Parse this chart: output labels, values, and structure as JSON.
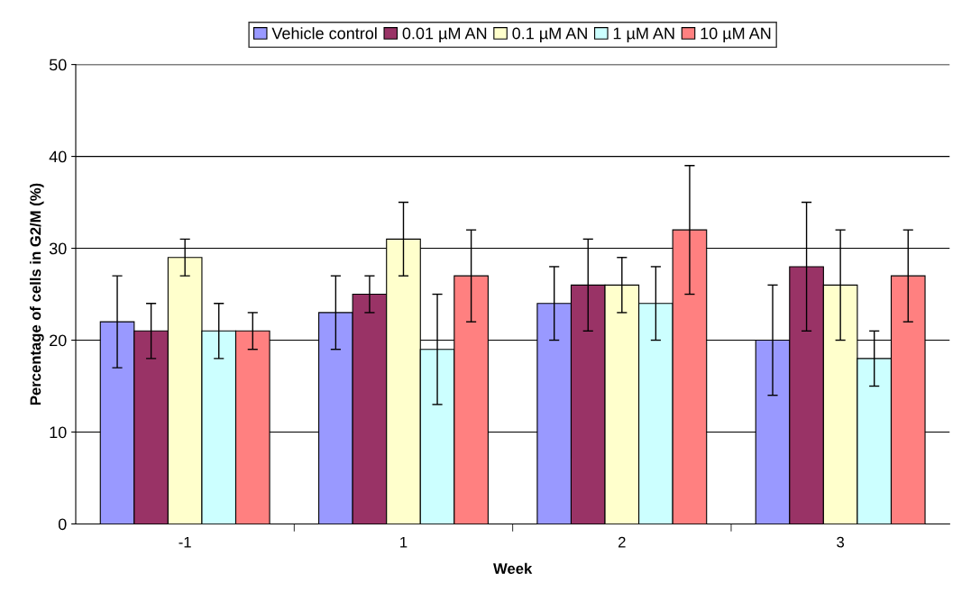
{
  "chart_data": {
    "type": "bar",
    "xlabel": "Week",
    "ylabel": "Percentage of cells in G2/M (%)",
    "categories": [
      "-1",
      "1",
      "2",
      "3"
    ],
    "series": [
      {
        "name": "Vehicle control",
        "color": "#9999ff",
        "values": [
          22,
          23,
          24,
          20
        ],
        "errors": [
          5,
          4,
          4,
          6
        ]
      },
      {
        "name": "0.01 µM AN",
        "color": "#993366",
        "values": [
          21,
          25,
          26,
          28
        ],
        "errors": [
          3,
          2,
          5,
          7
        ]
      },
      {
        "name": "0.1 µM AN",
        "color": "#ffffcc",
        "values": [
          29,
          31,
          26,
          26
        ],
        "errors": [
          2,
          4,
          3,
          6
        ]
      },
      {
        "name": "1 µM AN",
        "color": "#ccffff",
        "values": [
          21,
          19,
          24,
          18
        ],
        "errors": [
          3,
          6,
          4,
          3
        ]
      },
      {
        "name": "10 µM AN",
        "color": "#ff8080",
        "values": [
          21,
          27,
          32,
          27
        ],
        "errors": [
          2,
          5,
          7,
          5
        ]
      }
    ],
    "ylim": [
      0,
      50
    ],
    "yticks": [
      0,
      10,
      20,
      30,
      40,
      50
    ],
    "grid": "y",
    "legend": "top"
  }
}
